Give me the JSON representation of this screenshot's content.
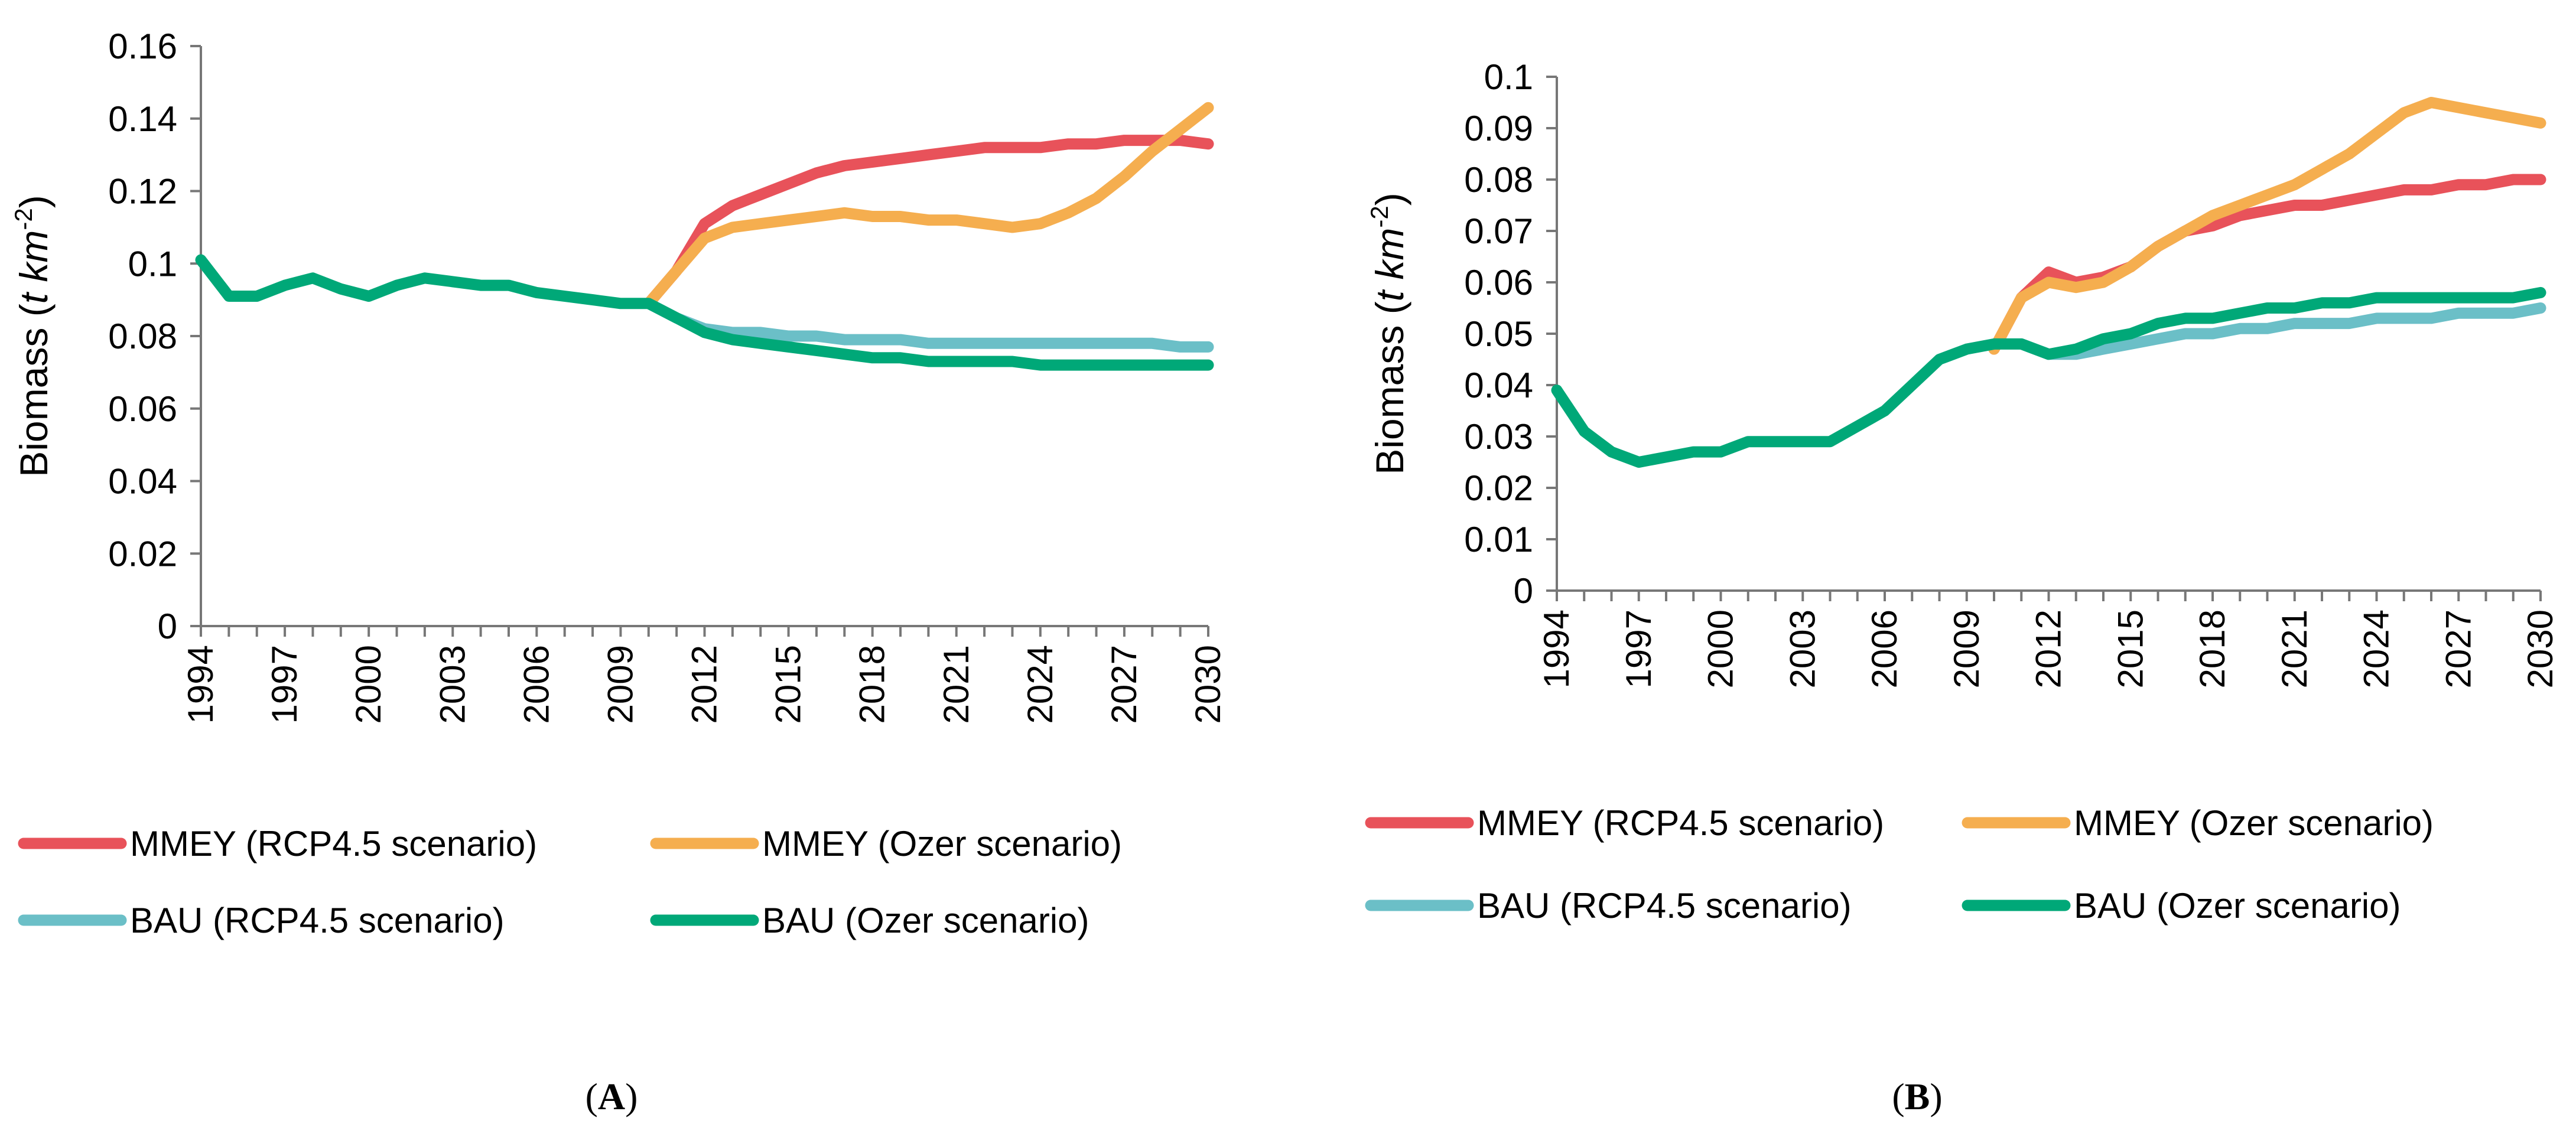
{
  "chart_data": [
    {
      "type": "line",
      "panel_label": "A",
      "ylabel": "Biomass",
      "ylabel_units": [
        "(",
        "t km",
        "-2",
        ")"
      ],
      "xlabel": "",
      "ylim": [
        0,
        0.16
      ],
      "yticks": [
        "0",
        "0.02",
        "0.04",
        "0.06",
        "0.08",
        "0.1",
        "0.12",
        "0.14",
        "0.16"
      ],
      "xticks": [
        "1994",
        "1997",
        "2000",
        "2003",
        "2006",
        "2009",
        "2012",
        "2015",
        "2018",
        "2021",
        "2024",
        "2027",
        "2030"
      ],
      "xlim": [
        1994,
        2030
      ],
      "legend_position": "bottom",
      "series": [
        {
          "name": "MMEY (RCP4.5 scenario)",
          "color": "#E8525A",
          "x": [
            2010,
            2011,
            2012,
            2013,
            2014,
            2015,
            2016,
            2017,
            2018,
            2019,
            2020,
            2021,
            2022,
            2023,
            2024,
            2025,
            2026,
            2027,
            2028,
            2029,
            2030
          ],
          "values": [
            0.089,
            0.098,
            0.111,
            0.116,
            0.119,
            0.122,
            0.125,
            0.127,
            0.128,
            0.129,
            0.13,
            0.131,
            0.132,
            0.132,
            0.132,
            0.133,
            0.133,
            0.134,
            0.134,
            0.134,
            0.133
          ]
        },
        {
          "name": "MMEY (Ozer scenario)",
          "color": "#F5AE4F",
          "x": [
            2010,
            2011,
            2012,
            2013,
            2014,
            2015,
            2016,
            2017,
            2018,
            2019,
            2020,
            2021,
            2022,
            2023,
            2024,
            2025,
            2026,
            2027,
            2028,
            2029,
            2030
          ],
          "values": [
            0.089,
            0.098,
            0.107,
            0.11,
            0.111,
            0.112,
            0.113,
            0.114,
            0.113,
            0.113,
            0.112,
            0.112,
            0.111,
            0.11,
            0.111,
            0.114,
            0.118,
            0.124,
            0.131,
            0.137,
            0.143
          ]
        },
        {
          "name": "BAU (RCP4.5 scenario)",
          "color": "#6BBFC7",
          "x": [
            2010,
            2011,
            2012,
            2013,
            2014,
            2015,
            2016,
            2017,
            2018,
            2019,
            2020,
            2021,
            2022,
            2023,
            2024,
            2025,
            2026,
            2027,
            2028,
            2029,
            2030
          ],
          "values": [
            0.089,
            0.085,
            0.082,
            0.081,
            0.081,
            0.08,
            0.08,
            0.079,
            0.079,
            0.079,
            0.078,
            0.078,
            0.078,
            0.078,
            0.078,
            0.078,
            0.078,
            0.078,
            0.078,
            0.077,
            0.077
          ]
        },
        {
          "name": "BAU (Ozer scenario)",
          "color": "#00A878",
          "x": [
            1994,
            1995,
            1996,
            1997,
            1998,
            1999,
            2000,
            2001,
            2002,
            2003,
            2004,
            2005,
            2006,
            2007,
            2008,
            2009,
            2010,
            2011,
            2012,
            2013,
            2014,
            2015,
            2016,
            2017,
            2018,
            2019,
            2020,
            2021,
            2022,
            2023,
            2024,
            2025,
            2026,
            2027,
            2028,
            2029,
            2030
          ],
          "values": [
            0.101,
            0.091,
            0.091,
            0.094,
            0.096,
            0.093,
            0.091,
            0.094,
            0.096,
            0.095,
            0.094,
            0.094,
            0.092,
            0.091,
            0.09,
            0.089,
            0.089,
            0.085,
            0.081,
            0.079,
            0.078,
            0.077,
            0.076,
            0.075,
            0.074,
            0.074,
            0.073,
            0.073,
            0.073,
            0.073,
            0.072,
            0.072,
            0.072,
            0.072,
            0.072,
            0.072,
            0.072
          ]
        }
      ]
    },
    {
      "type": "line",
      "panel_label": "B",
      "ylabel": "Biomass",
      "ylabel_units": [
        "(",
        "t km",
        "-2",
        ")"
      ],
      "xlabel": "",
      "ylim": [
        0,
        0.1
      ],
      "yticks": [
        "0",
        "0.01",
        "0.02",
        "0.03",
        "0.04",
        "0.05",
        "0.06",
        "0.07",
        "0.08",
        "0.09",
        "0.1"
      ],
      "xticks": [
        "1994",
        "1997",
        "2000",
        "2003",
        "2006",
        "2009",
        "2012",
        "2015",
        "2018",
        "2021",
        "2024",
        "2027",
        "2030"
      ],
      "xlim": [
        1994,
        2030
      ],
      "legend_position": "bottom",
      "series": [
        {
          "name": "MMEY (RCP4.5 scenario)",
          "color": "#E8525A",
          "x": [
            2010,
            2011,
            2012,
            2013,
            2014,
            2015,
            2016,
            2017,
            2018,
            2019,
            2020,
            2021,
            2022,
            2023,
            2024,
            2025,
            2026,
            2027,
            2028,
            2029,
            2030
          ],
          "values": [
            0.047,
            0.057,
            0.062,
            0.06,
            0.061,
            0.063,
            0.067,
            0.07,
            0.071,
            0.073,
            0.074,
            0.075,
            0.075,
            0.076,
            0.077,
            0.078,
            0.078,
            0.079,
            0.079,
            0.08,
            0.08
          ]
        },
        {
          "name": "MMEY (Ozer scenario)",
          "color": "#F5AE4F",
          "x": [
            2010,
            2011,
            2012,
            2013,
            2014,
            2015,
            2016,
            2017,
            2018,
            2019,
            2020,
            2021,
            2022,
            2023,
            2024,
            2025,
            2026,
            2027,
            2028,
            2029,
            2030
          ],
          "values": [
            0.047,
            0.057,
            0.06,
            0.059,
            0.06,
            0.063,
            0.067,
            0.07,
            0.073,
            0.075,
            0.077,
            0.079,
            0.082,
            0.085,
            0.089,
            0.093,
            0.095,
            0.094,
            0.093,
            0.092,
            0.091
          ]
        },
        {
          "name": "BAU (RCP4.5 scenario)",
          "color": "#6BBFC7",
          "x": [
            2011,
            2012,
            2013,
            2014,
            2015,
            2016,
            2017,
            2018,
            2019,
            2020,
            2021,
            2022,
            2023,
            2024,
            2025,
            2026,
            2027,
            2028,
            2029,
            2030
          ],
          "values": [
            0.048,
            0.046,
            0.046,
            0.047,
            0.048,
            0.049,
            0.05,
            0.05,
            0.051,
            0.051,
            0.052,
            0.052,
            0.052,
            0.053,
            0.053,
            0.053,
            0.054,
            0.054,
            0.054,
            0.055
          ]
        },
        {
          "name": "BAU (Ozer scenario)",
          "color": "#00A878",
          "x": [
            1994,
            1995,
            1996,
            1997,
            1998,
            1999,
            2000,
            2001,
            2002,
            2003,
            2004,
            2005,
            2006,
            2007,
            2008,
            2009,
            2010,
            2011,
            2012,
            2013,
            2014,
            2015,
            2016,
            2017,
            2018,
            2019,
            2020,
            2021,
            2022,
            2023,
            2024,
            2025,
            2026,
            2027,
            2028,
            2029,
            2030
          ],
          "values": [
            0.039,
            0.031,
            0.027,
            0.025,
            0.026,
            0.027,
            0.027,
            0.029,
            0.029,
            0.029,
            0.029,
            0.032,
            0.035,
            0.04,
            0.045,
            0.047,
            0.048,
            0.048,
            0.046,
            0.047,
            0.049,
            0.05,
            0.052,
            0.053,
            0.053,
            0.054,
            0.055,
            0.055,
            0.056,
            0.056,
            0.057,
            0.057,
            0.057,
            0.057,
            0.057,
            0.057,
            0.058
          ]
        }
      ]
    }
  ]
}
